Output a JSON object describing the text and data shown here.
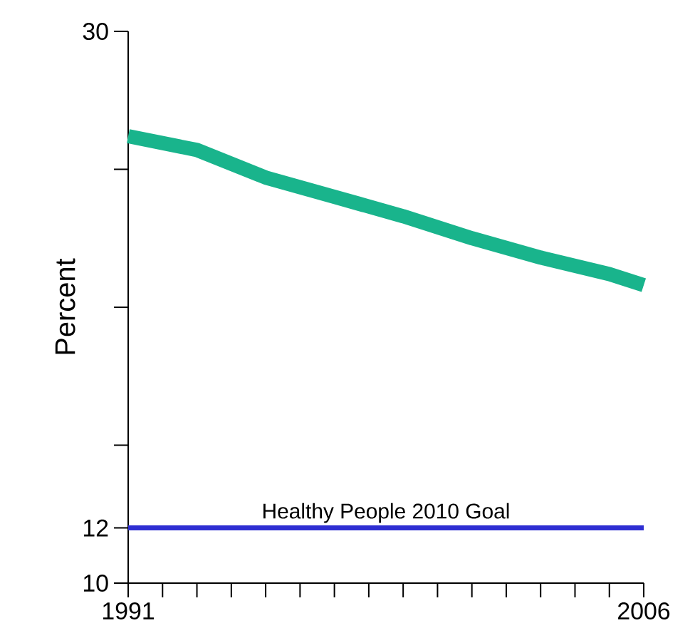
{
  "chart_data": {
    "type": "line",
    "ylabel": "Percent",
    "x": [
      1991,
      1993,
      1995,
      1997,
      1999,
      2001,
      2003,
      2005,
      2006
    ],
    "series": [
      {
        "color": "#19b48c",
        "values": [
          26.2,
          25.7,
          24.7,
          24.0,
          23.3,
          22.5,
          21.8,
          21.2,
          20.8
        ]
      }
    ],
    "xlim": [
      1991,
      2006
    ],
    "xticks": [
      1991,
      {
        "value": 1992,
        "label": null
      },
      {
        "value": 1993,
        "label": null
      },
      {
        "value": 1994,
        "label": null
      },
      {
        "value": 1995,
        "label": null
      },
      {
        "value": 1996,
        "label": null
      },
      {
        "value": 1997,
        "label": null
      },
      {
        "value": 1998,
        "label": null
      },
      {
        "value": 1999,
        "label": null
      },
      {
        "value": 2000,
        "label": null
      },
      {
        "value": 2001,
        "label": null
      },
      {
        "value": 2002,
        "label": null
      },
      {
        "value": 2003,
        "label": null
      },
      {
        "value": 2004,
        "label": null
      },
      {
        "value": 2005,
        "label": null
      },
      2006
    ],
    "ylim": [
      10,
      30
    ],
    "yticks": [
      10,
      12,
      {
        "value": 15,
        "label": null
      },
      {
        "value": 20,
        "label": null
      },
      {
        "value": 25,
        "label": null
      },
      30
    ],
    "ref_lines": [
      {
        "axis": "y",
        "value": 12,
        "label": "Healthy People 2010 Goal",
        "color": "#2e2ed2"
      }
    ],
    "marker": "none",
    "line_style": "solid"
  }
}
